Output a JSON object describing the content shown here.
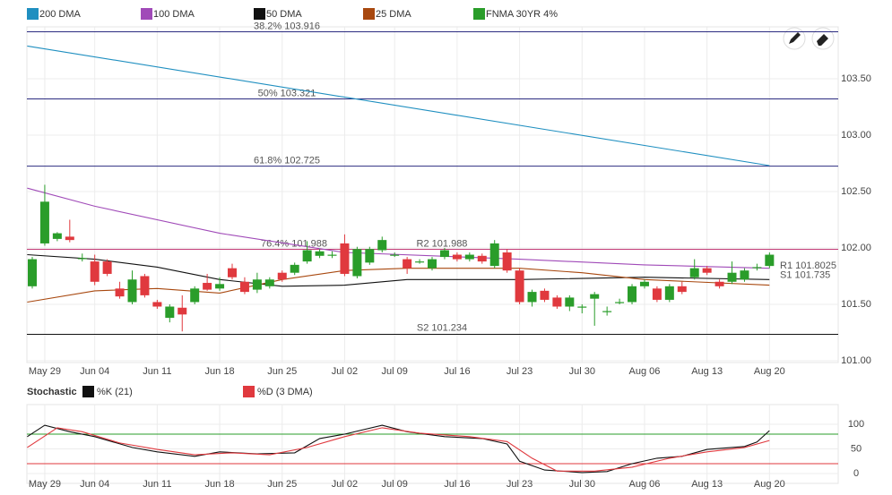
{
  "chart_data": [
    {
      "type": "candlestick",
      "name": "FNMA 30YR 4%",
      "color": "#2a9d2a",
      "down_color": "#e0393e",
      "x": [
        0,
        1,
        2,
        3,
        4,
        5,
        6,
        7,
        8,
        9,
        10,
        11,
        12,
        13,
        14,
        15,
        16,
        17,
        18,
        19,
        20,
        21,
        22,
        23,
        24,
        25,
        26,
        27,
        28,
        29,
        30,
        31,
        32,
        33,
        34,
        35,
        36,
        37,
        38,
        39,
        40,
        41,
        42,
        43,
        44,
        45,
        46,
        47,
        48,
        49,
        50,
        51,
        52,
        53,
        54,
        55,
        56,
        57,
        58,
        59
      ],
      "open": [
        101.66,
        102.04,
        102.08,
        102.1,
        101.91,
        101.88,
        101.88,
        101.64,
        101.52,
        101.75,
        101.52,
        101.38,
        101.47,
        101.52,
        101.69,
        101.64,
        101.82,
        101.7,
        101.63,
        101.66,
        101.78,
        101.78,
        101.88,
        101.93,
        101.94,
        102.04,
        101.75,
        101.87,
        101.98,
        101.94,
        101.9,
        101.88,
        101.82,
        101.92,
        101.94,
        101.9,
        101.93,
        101.84,
        101.96,
        101.8,
        101.52,
        101.62,
        101.56,
        101.48,
        101.48,
        101.55,
        101.44,
        101.52,
        101.52,
        101.66,
        101.64,
        101.54,
        101.66,
        101.74,
        101.82,
        101.7,
        101.7,
        101.72,
        101.83,
        101.84
      ],
      "high": [
        101.92,
        102.56,
        102.14,
        102.25,
        101.95,
        101.94,
        101.9,
        101.7,
        101.8,
        101.77,
        101.54,
        101.5,
        101.58,
        101.66,
        101.77,
        101.74,
        101.86,
        101.74,
        101.78,
        101.74,
        101.8,
        101.87,
        102.06,
        101.99,
        101.97,
        102.12,
        102.01,
        102.01,
        102.1,
        101.96,
        101.92,
        101.9,
        101.92,
        102.0,
        101.96,
        101.96,
        101.95,
        102.07,
        101.99,
        101.82,
        101.63,
        101.64,
        101.58,
        101.58,
        101.5,
        101.61,
        101.48,
        101.55,
        101.68,
        101.72,
        101.66,
        101.68,
        101.7,
        101.9,
        101.84,
        101.72,
        101.88,
        101.82,
        101.86,
        101.96
      ],
      "low": [
        101.64,
        102.02,
        102.06,
        102.05,
        101.88,
        101.67,
        101.75,
        101.55,
        101.5,
        101.56,
        101.46,
        101.34,
        101.26,
        101.5,
        101.62,
        101.62,
        101.72,
        101.59,
        101.6,
        101.64,
        101.7,
        101.76,
        101.86,
        101.91,
        101.91,
        101.75,
        101.73,
        101.85,
        101.96,
        101.92,
        101.77,
        101.86,
        101.8,
        101.9,
        101.88,
        101.88,
        101.86,
        101.82,
        101.78,
        101.5,
        101.48,
        101.52,
        101.46,
        101.44,
        101.42,
        101.31,
        101.4,
        101.5,
        101.5,
        101.64,
        101.52,
        101.52,
        101.59,
        101.72,
        101.76,
        101.64,
        101.68,
        101.7,
        101.8,
        101.82
      ],
      "close": [
        101.9,
        102.41,
        102.13,
        102.07,
        101.91,
        101.7,
        101.77,
        101.57,
        101.72,
        101.58,
        101.48,
        101.48,
        101.41,
        101.64,
        101.63,
        101.68,
        101.74,
        101.61,
        101.72,
        101.72,
        101.72,
        101.85,
        101.98,
        101.97,
        101.94,
        101.77,
        101.99,
        101.99,
        102.07,
        101.94,
        101.82,
        101.88,
        101.9,
        101.98,
        101.9,
        101.94,
        101.88,
        102.04,
        101.8,
        101.52,
        101.61,
        101.54,
        101.48,
        101.56,
        101.48,
        101.59,
        101.44,
        101.52,
        101.66,
        101.7,
        101.54,
        101.66,
        101.61,
        101.82,
        101.78,
        101.66,
        101.78,
        101.8,
        101.83,
        101.94
      ],
      "series": [
        {
          "name": "200 DMA",
          "color": "#1f8fc0",
          "x": [
            -0.4,
            59
          ],
          "values": [
            103.79,
            102.73
          ]
        },
        {
          "name": "100 DMA",
          "color": "#a04ab8",
          "x": [
            -0.4,
            5,
            15,
            25,
            39,
            49,
            59
          ],
          "values": [
            102.53,
            102.37,
            102.13,
            101.96,
            101.9,
            101.85,
            101.82
          ]
        },
        {
          "name": "50 DMA",
          "color": "#111111",
          "x": [
            -0.4,
            5,
            10,
            15,
            20,
            25,
            30,
            39,
            49,
            59
          ],
          "values": [
            101.94,
            101.9,
            101.83,
            101.72,
            101.66,
            101.67,
            101.72,
            101.72,
            101.74,
            101.72
          ]
        },
        {
          "name": "25 DMA",
          "color": "#a8480f",
          "x": [
            -0.4,
            5,
            10,
            15,
            20,
            25,
            30,
            39,
            44,
            49,
            59
          ],
          "values": [
            101.52,
            101.62,
            101.64,
            101.6,
            101.72,
            101.8,
            101.82,
            101.82,
            101.78,
            101.72,
            101.67
          ]
        }
      ],
      "levels": [
        {
          "label": "38.2% 103.916",
          "value": 103.916,
          "color": "#2b2b80",
          "line": true
        },
        {
          "label": "50% 103.321",
          "value": 103.321,
          "color": "#2b2b80",
          "line": true
        },
        {
          "label": "61.8% 102.725",
          "value": 102.725,
          "color": "#2b2b80",
          "line": true
        },
        {
          "label": "76.4% 101.988",
          "value": 101.988,
          "color": "#c23b76",
          "line": true
        },
        {
          "label": "R2 101.988",
          "value": 101.988,
          "color": "#c23b76",
          "line": false
        },
        {
          "label": "R1 101.8025",
          "value": 101.8025,
          "color": "#888888",
          "line": false
        },
        {
          "label": "S1 101.735",
          "value": 101.735,
          "color": "#888888",
          "line": false
        },
        {
          "label": "S2 101.234",
          "value": 101.234,
          "color": "#111111",
          "line": true
        }
      ],
      "xlim": [
        -0.43,
        64.5
      ],
      "xticks": [
        {
          "value": 1,
          "label": "May 29"
        },
        {
          "value": 5,
          "label": "Jun 04"
        },
        {
          "value": 10,
          "label": "Jun 11"
        },
        {
          "value": 15,
          "label": "Jun 18"
        },
        {
          "value": 20,
          "label": "Jun 25"
        },
        {
          "value": 25,
          "label": "Jul 02"
        },
        {
          "value": 29,
          "label": "Jul 09"
        },
        {
          "value": 34,
          "label": "Jul 16"
        },
        {
          "value": 39,
          "label": "Jul 23"
        },
        {
          "value": 44,
          "label": "Jul 30"
        },
        {
          "value": 49,
          "label": "Aug 06"
        },
        {
          "value": 54,
          "label": "Aug 13"
        },
        {
          "value": 59,
          "label": "Aug 20"
        }
      ],
      "ylim": [
        100.984,
        103.96
      ],
      "yticks": [
        {
          "value": 101,
          "label": "101.00"
        },
        {
          "value": 101.5,
          "label": "101.50"
        },
        {
          "value": 102,
          "label": "102.00"
        },
        {
          "value": 102.5,
          "label": "102.50"
        },
        {
          "value": 103,
          "label": "103.00"
        },
        {
          "value": 103.5,
          "label": "103.50"
        }
      ],
      "grid": true
    },
    {
      "type": "line",
      "title": "Stochastic",
      "series": [
        {
          "name": "%K (21)",
          "color": "#111111",
          "x": [
            -0.4,
            1,
            3,
            5,
            8,
            10,
            13,
            15,
            18,
            21,
            23,
            25,
            28,
            30,
            33,
            36,
            38,
            39,
            41,
            44,
            46,
            48,
            50,
            52,
            54,
            57,
            58,
            59
          ],
          "values": [
            75,
            98,
            85,
            75,
            53,
            44,
            35,
            44,
            40,
            42,
            71,
            80,
            98,
            85,
            75,
            71,
            60,
            25,
            7,
            2,
            4,
            20,
            31,
            35,
            49,
            55,
            64,
            87
          ]
        },
        {
          "name": "%D (3 DMA)",
          "color": "#e0393e",
          "x": [
            -0.4,
            2,
            4,
            7,
            10,
            13,
            16,
            19,
            22,
            25,
            28,
            31,
            35,
            38,
            40,
            42,
            45,
            48,
            51,
            54,
            57,
            59
          ],
          "values": [
            53,
            93,
            85,
            62,
            49,
            38,
            42,
            38,
            53,
            75,
            93,
            82,
            75,
            65,
            31,
            5,
            5,
            13,
            31,
            44,
            53,
            67
          ]
        }
      ],
      "levels": [
        {
          "value": 80,
          "color": "#2a9d2a"
        },
        {
          "value": 20,
          "color": "#e0393e"
        }
      ],
      "xlim": [
        -0.43,
        64.5
      ],
      "xticks": [
        {
          "value": 1,
          "label": "May 29"
        },
        {
          "value": 5,
          "label": "Jun 04"
        },
        {
          "value": 10,
          "label": "Jun 11"
        },
        {
          "value": 15,
          "label": "Jun 18"
        },
        {
          "value": 20,
          "label": "Jun 25"
        },
        {
          "value": 25,
          "label": "Jul 02"
        },
        {
          "value": 29,
          "label": "Jul 09"
        },
        {
          "value": 34,
          "label": "Jul 16"
        },
        {
          "value": 39,
          "label": "Jul 23"
        },
        {
          "value": 44,
          "label": "Jul 30"
        },
        {
          "value": 49,
          "label": "Aug 06"
        },
        {
          "value": 54,
          "label": "Aug 13"
        },
        {
          "value": 59,
          "label": "Aug 20"
        }
      ],
      "ylim": [
        -20,
        140
      ],
      "yticks": [
        0,
        50,
        100
      ],
      "grid": true
    }
  ]
}
